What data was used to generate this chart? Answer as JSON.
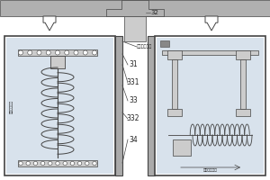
{
  "bg_color": "#ffffff",
  "grey_bar": "#b0b0b0",
  "grey_dark": "#888888",
  "grey_light": "#cccccc",
  "grey_mid": "#aaaaaa",
  "liquid_color": "#d8e2ec",
  "wall_color": "#555555",
  "line_color": "#444444",
  "text_color": "#222222",
  "label_32": "32",
  "label_31": "31",
  "label_331": "331",
  "label_33": "33",
  "label_332": "332",
  "label_34": "34",
  "label_solid_liquid": "固体液混合液",
  "label_horizontal": "水平移动推进",
  "label_vertical": "垂直超声细化"
}
